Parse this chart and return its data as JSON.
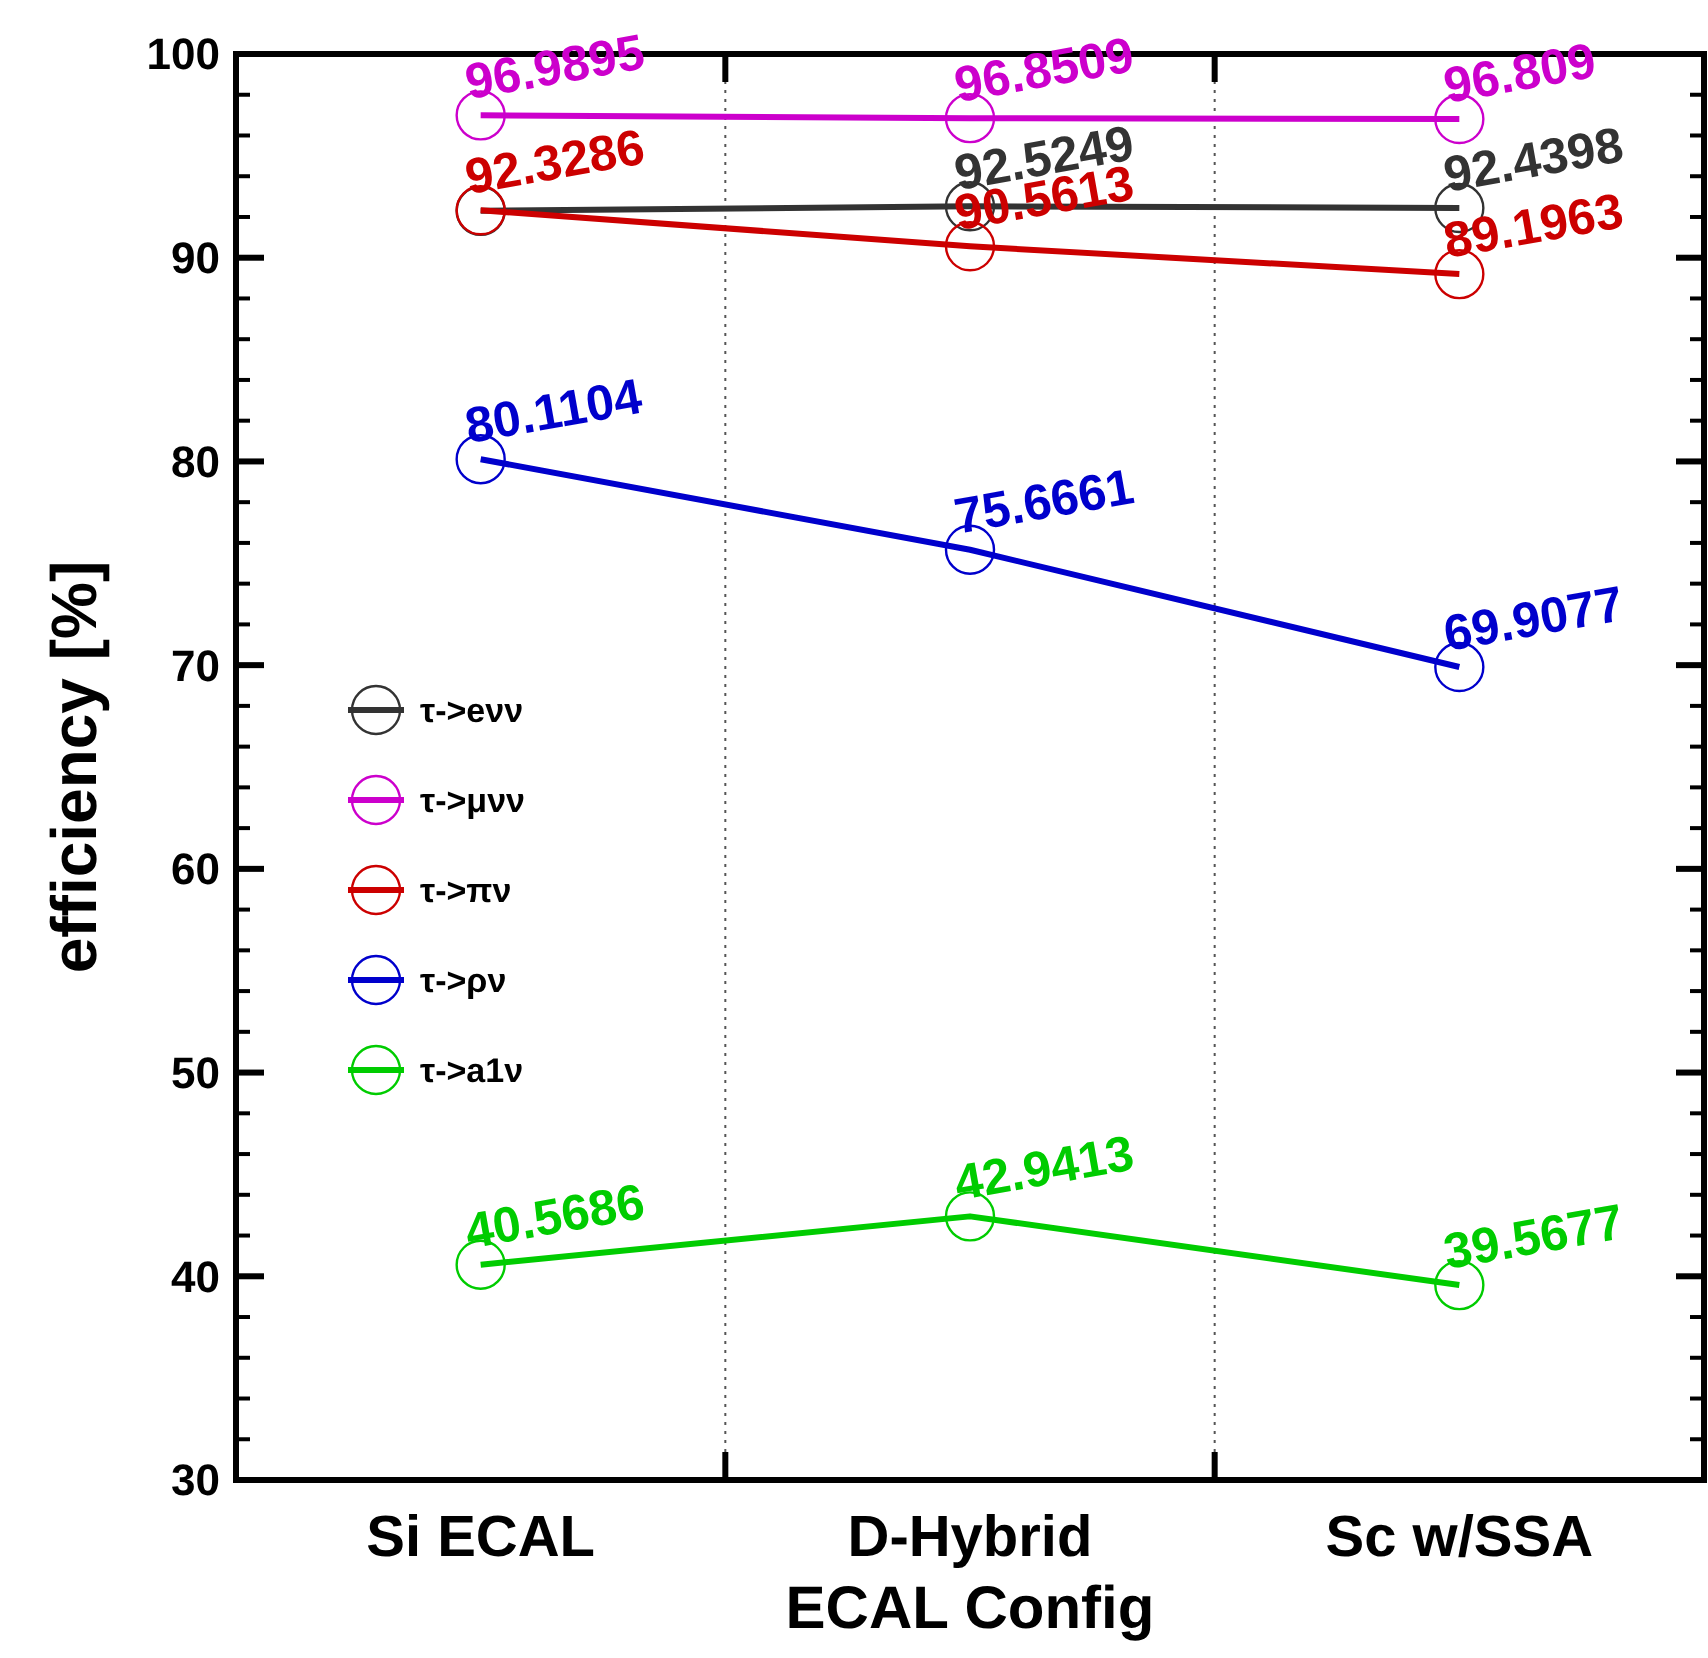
{
  "chart_data": {
    "type": "line",
    "xlabel": "ECAL Config",
    "ylabel": "efficiency [%]",
    "categories": [
      "Si ECAL",
      "D-Hybrid",
      "Sc w/SSA"
    ],
    "ylim": [
      30,
      100
    ],
    "yticks": [
      30,
      40,
      50,
      60,
      70,
      80,
      90,
      100
    ],
    "grid": false,
    "legend": "left",
    "marker": "circle",
    "line_style": "solid",
    "series": [
      {
        "name": "τ->eνν",
        "color": "#333333",
        "values": [
          92.3,
          92.5249,
          92.4398
        ],
        "value_labels": [
          null,
          "92.5249",
          "92.4398"
        ]
      },
      {
        "name": "τ->μνν",
        "color": "#cc00cc",
        "values": [
          96.9895,
          96.8509,
          96.809
        ],
        "value_labels": [
          "96.9895",
          "96.8509",
          "96.809"
        ]
      },
      {
        "name": "τ->πν",
        "color": "#cc0000",
        "values": [
          92.3286,
          90.5613,
          89.1963
        ],
        "value_labels": [
          "92.3286",
          "90.5613",
          "89.1963"
        ]
      },
      {
        "name": "τ->ρν",
        "color": "#0000cc",
        "values": [
          80.1104,
          75.6661,
          69.9077
        ],
        "value_labels": [
          "80.1104",
          "75.6661",
          "69.9077"
        ]
      },
      {
        "name": "τ->a1ν",
        "color": "#00cc00",
        "values": [
          40.5686,
          42.9413,
          39.5677
        ],
        "value_labels": [
          "40.5686",
          "42.9413",
          "39.5677"
        ]
      }
    ]
  }
}
